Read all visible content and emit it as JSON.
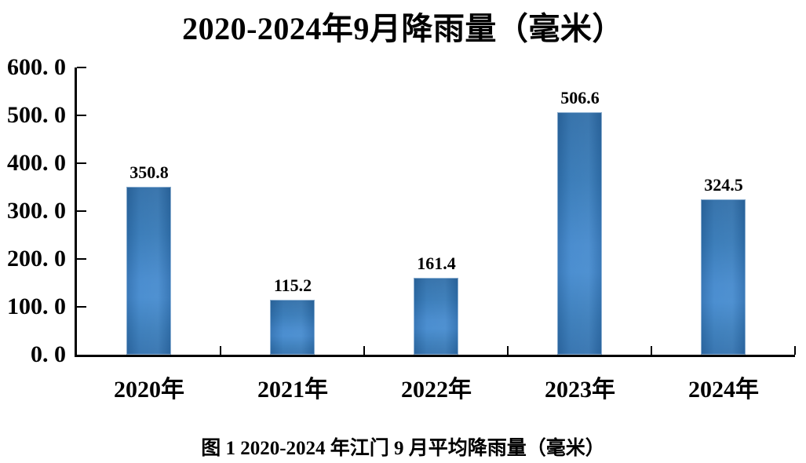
{
  "chart_data": {
    "type": "bar",
    "title": "2020-2024年9月降雨量（毫米）",
    "categories": [
      "2020年",
      "2021年",
      "2022年",
      "2023年",
      "2024年"
    ],
    "values": [
      350.8,
      115.2,
      161.4,
      506.6,
      324.5
    ],
    "value_labels": [
      "350.8",
      "115.2",
      "161.4",
      "506.6",
      "324.5"
    ],
    "xlabel": "",
    "ylabel": "",
    "ylim": [
      0,
      600
    ],
    "y_tick_values": [
      600,
      500,
      400,
      300,
      200,
      100,
      0
    ],
    "y_tick_labels": [
      "600. 0",
      "500. 0",
      "400. 0",
      "300. 0",
      "200. 0",
      "100. 0",
      "0. 0"
    ],
    "grid": false,
    "legend": false,
    "bar_color": "#3579b8",
    "bar_color_light": "#4289ce",
    "bar_color_dark": "#2d6ca7",
    "axis_color": "#000000",
    "text_color": "#000000"
  },
  "caption": "图 1 2020-2024 年江门 9 月平均降雨量（毫米）"
}
